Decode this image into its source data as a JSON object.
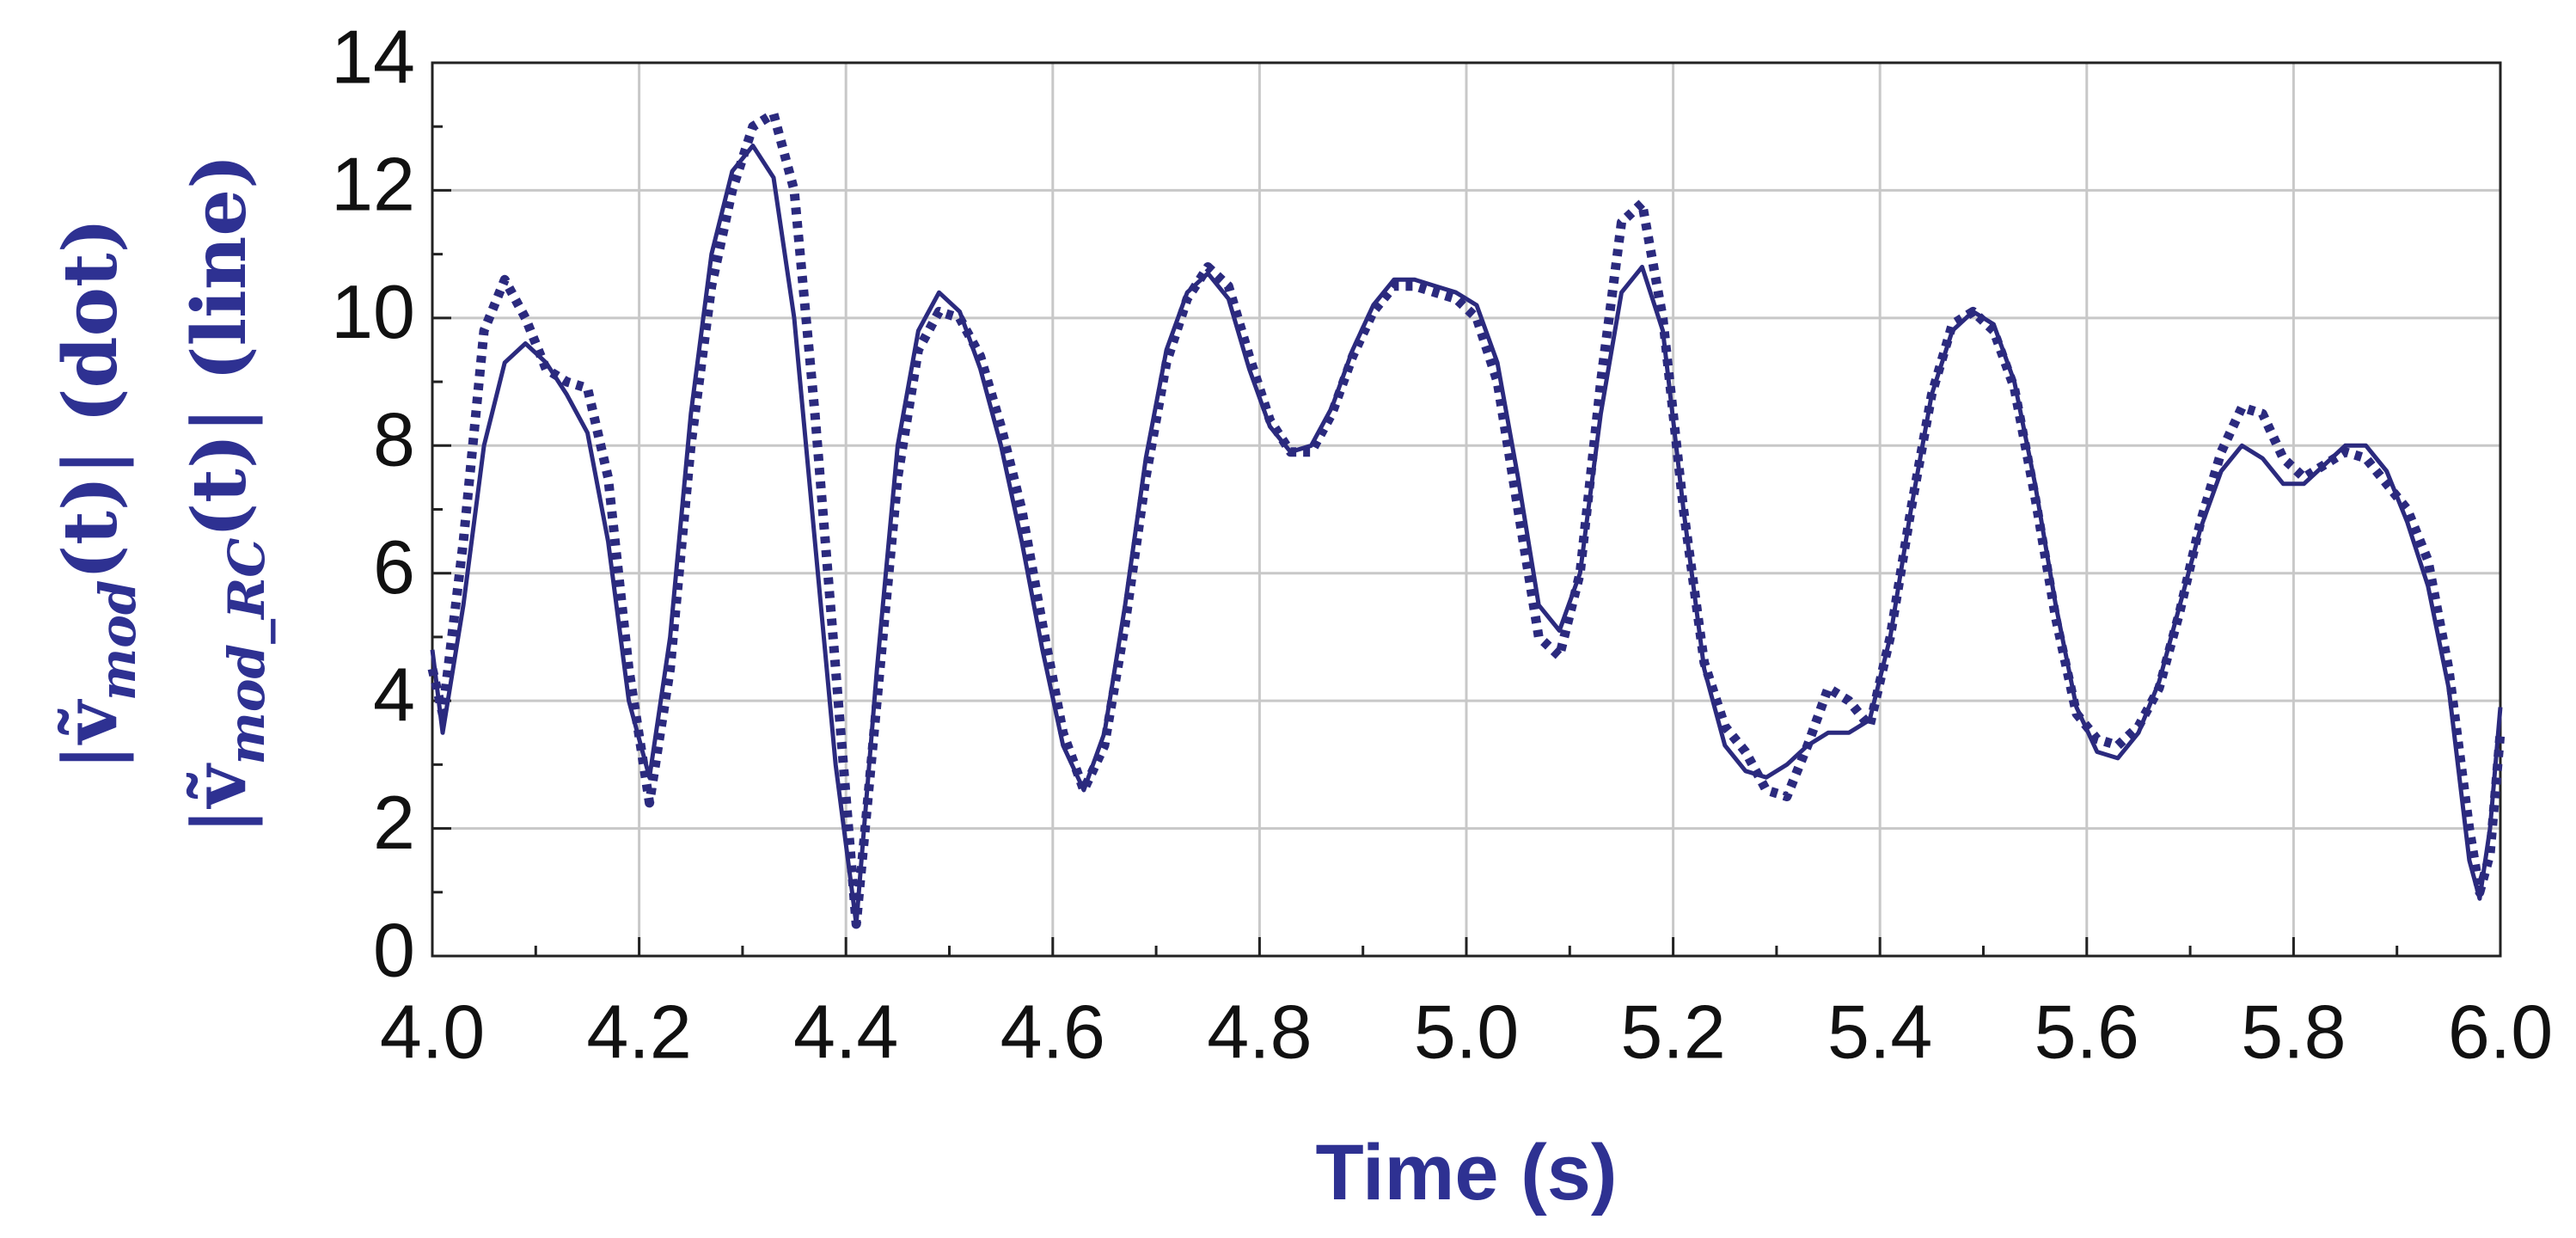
{
  "chart_data": {
    "type": "line",
    "xlabel": "Time (s)",
    "ylabel": [
      [
        "|ṽ",
        "mod",
        "(t)| (dot)"
      ],
      [
        "|ṽ",
        "mod_RC",
        "(t)| (line)"
      ]
    ],
    "x": [
      4,
      4.01,
      4.03,
      4.05,
      4.07,
      4.09,
      4.11,
      4.13,
      4.15,
      4.17,
      4.19,
      4.21,
      4.23,
      4.25,
      4.27,
      4.29,
      4.31,
      4.33,
      4.35,
      4.37,
      4.39,
      4.41,
      4.43,
      4.45,
      4.47,
      4.49,
      4.51,
      4.53,
      4.55,
      4.57,
      4.59,
      4.61,
      4.63,
      4.65,
      4.67,
      4.69,
      4.71,
      4.73,
      4.75,
      4.77,
      4.79,
      4.81,
      4.83,
      4.85,
      4.87,
      4.89,
      4.91,
      4.93,
      4.95,
      4.97,
      4.99,
      5.01,
      5.03,
      5.05,
      5.07,
      5.09,
      5.11,
      5.13,
      5.15,
      5.17,
      5.19,
      5.21,
      5.23,
      5.25,
      5.27,
      5.29,
      5.31,
      5.33,
      5.35,
      5.37,
      5.39,
      5.41,
      5.43,
      5.45,
      5.47,
      5.49,
      5.51,
      5.53,
      5.55,
      5.57,
      5.59,
      5.61,
      5.63,
      5.65,
      5.67,
      5.69,
      5.71,
      5.73,
      5.75,
      5.77,
      5.79,
      5.81,
      5.83,
      5.85,
      5.87,
      5.89,
      5.91,
      5.93,
      5.95,
      5.97,
      5.98,
      5.99,
      6
    ],
    "series": [
      {
        "color": "#2b2a7e",
        "style": "dotted",
        "values": [
          4.5,
          3.8,
          6.5,
          9.8,
          10.6,
          10.0,
          9.2,
          9.0,
          8.9,
          7.5,
          4.5,
          2.4,
          4.5,
          8.0,
          10.5,
          12.0,
          13.0,
          13.2,
          12.0,
          8.5,
          4.5,
          0.5,
          4.0,
          7.5,
          9.5,
          10.1,
          10.0,
          9.4,
          8.3,
          7.0,
          5.2,
          3.5,
          2.6,
          3.3,
          5.2,
          7.5,
          9.3,
          10.3,
          10.8,
          10.5,
          9.4,
          8.4,
          7.9,
          7.9,
          8.5,
          9.4,
          10.1,
          10.5,
          10.5,
          10.4,
          10.3,
          10.0,
          9.0,
          7.0,
          5.0,
          4.7,
          6.0,
          9.0,
          11.5,
          11.8,
          10.0,
          7.0,
          4.6,
          3.6,
          3.2,
          2.6,
          2.5,
          3.3,
          4.2,
          4.0,
          3.6,
          5.0,
          7.0,
          8.8,
          9.9,
          10.1,
          9.8,
          8.9,
          7.2,
          5.3,
          3.8,
          3.4,
          3.3,
          3.6,
          4.2,
          5.4,
          6.8,
          7.9,
          8.6,
          8.5,
          7.8,
          7.5,
          7.7,
          7.9,
          7.8,
          7.4,
          7.0,
          6.2,
          4.5,
          2.0,
          1.0,
          1.6,
          3.5
        ]
      },
      {
        "color": "#2b2a7e",
        "style": "solid",
        "values": [
          4.8,
          3.5,
          5.5,
          8.0,
          9.3,
          9.6,
          9.3,
          8.8,
          8.2,
          6.5,
          4.0,
          2.8,
          5.0,
          8.5,
          11.0,
          12.3,
          12.7,
          12.2,
          10.0,
          6.5,
          3.0,
          0.5,
          4.5,
          8.0,
          9.8,
          10.4,
          10.1,
          9.2,
          8.0,
          6.5,
          4.8,
          3.3,
          2.6,
          3.5,
          5.5,
          7.8,
          9.5,
          10.4,
          10.7,
          10.3,
          9.2,
          8.3,
          7.9,
          8.0,
          8.6,
          9.5,
          10.2,
          10.6,
          10.6,
          10.5,
          10.4,
          10.2,
          9.3,
          7.5,
          5.5,
          5.1,
          6.0,
          8.5,
          10.4,
          10.8,
          9.8,
          7.0,
          4.5,
          3.3,
          2.9,
          2.8,
          3.0,
          3.3,
          3.5,
          3.5,
          3.7,
          5.0,
          7.0,
          8.8,
          9.8,
          10.1,
          9.9,
          9.0,
          7.4,
          5.5,
          3.9,
          3.2,
          3.1,
          3.5,
          4.3,
          5.5,
          6.7,
          7.6,
          8.0,
          7.8,
          7.4,
          7.4,
          7.7,
          8.0,
          8.0,
          7.6,
          6.8,
          5.8,
          4.2,
          1.5,
          0.9,
          2.0,
          3.9
        ]
      }
    ],
    "xlim": [
      4,
      6
    ],
    "xticks": [
      {
        "value": 4,
        "label": "4.0"
      },
      4.2,
      4.4,
      4.6,
      4.8,
      {
        "value": 5,
        "label": "5.0"
      },
      5.2,
      5.4,
      5.6,
      5.8,
      {
        "value": 6,
        "label": "6.0"
      }
    ],
    "ylim": [
      0,
      14
    ],
    "yticks": [
      0,
      2,
      4,
      6,
      8,
      10,
      12,
      14
    ],
    "grid": true
  }
}
